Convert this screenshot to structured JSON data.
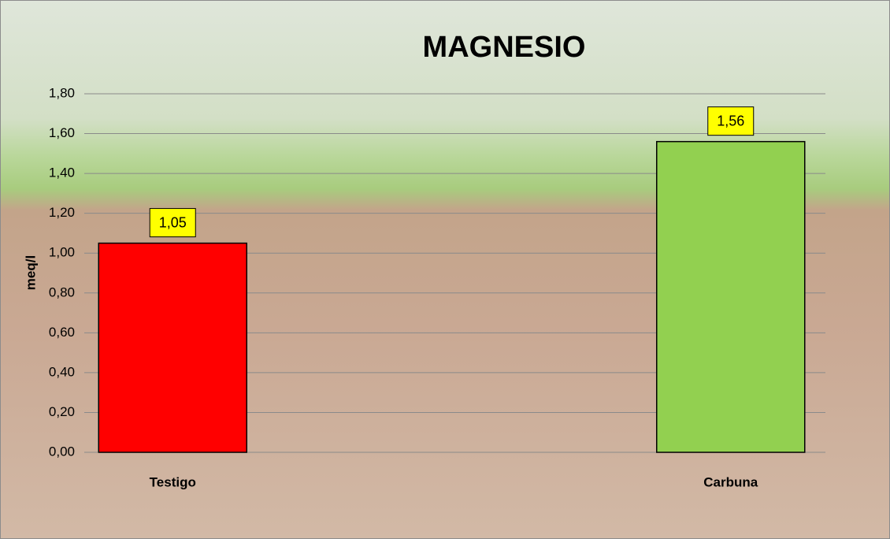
{
  "chart_data": {
    "type": "bar",
    "title": "MAGNESIO",
    "y_label": "meq/l",
    "categories": [
      "Testigo",
      "Carbuna"
    ],
    "values": [
      1.05,
      1.56
    ],
    "value_labels": [
      "1,05",
      "1,56"
    ],
    "colors": [
      "#ff0000",
      "#92d050"
    ],
    "ylim": [
      0,
      1.8
    ],
    "yticks": [
      {
        "value": 0,
        "label": "0,00"
      },
      {
        "value": 0.2,
        "label": "0,20"
      },
      {
        "value": 0.4,
        "label": "0,40"
      },
      {
        "value": 0.6,
        "label": "0,60"
      },
      {
        "value": 0.8,
        "label": "0,80"
      },
      {
        "value": 1.0,
        "label": "1,00"
      },
      {
        "value": 1.2,
        "label": "1,20"
      },
      {
        "value": 1.4,
        "label": "1,40"
      },
      {
        "value": 1.6,
        "label": "1,60"
      },
      {
        "value": 1.8,
        "label": "1,80"
      }
    ],
    "grid": true
  }
}
